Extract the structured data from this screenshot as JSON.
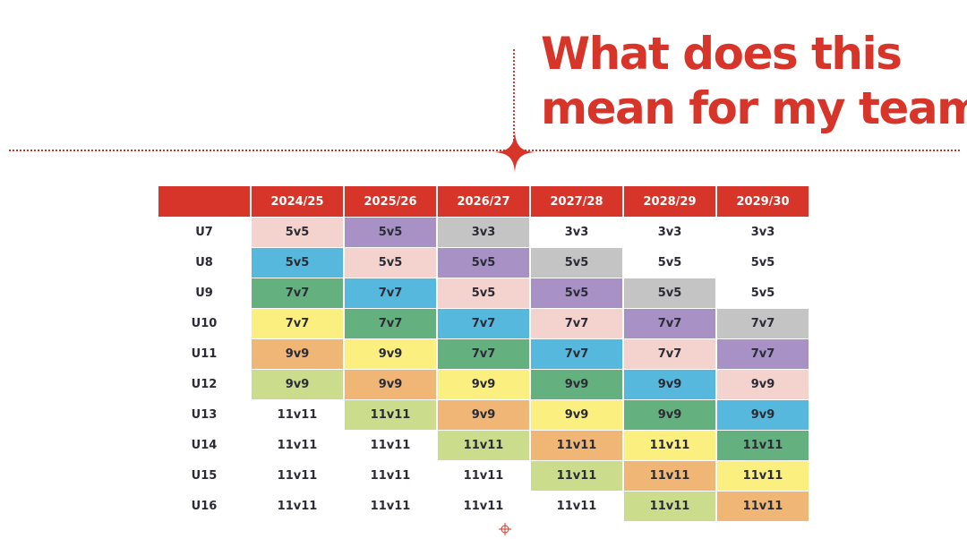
{
  "heading": {
    "line1": "What does this",
    "line2": "mean for my team?"
  },
  "colors": {
    "accent": "#d8352a",
    "pink": "#f4d2cd",
    "purple": "#a891c4",
    "grey": "#c4c4c4",
    "blue": "#55b8dc",
    "green": "#64b07e",
    "yellow": "#fbf07f",
    "orange": "#efb676",
    "lime": "#cbdd8d",
    "white": "#ffffff"
  },
  "table": {
    "seasons": [
      "2024/25",
      "2025/26",
      "2026/27",
      "2027/28",
      "2028/29",
      "2029/30"
    ],
    "rows": [
      {
        "age": "U7",
        "cells": [
          "5v5",
          "5v5",
          "3v3",
          "3v3",
          "3v3",
          "3v3"
        ],
        "colors": [
          "pink",
          "purple",
          "grey",
          "white",
          "white",
          "white"
        ]
      },
      {
        "age": "U8",
        "cells": [
          "5v5",
          "5v5",
          "5v5",
          "5v5",
          "5v5",
          "5v5"
        ],
        "colors": [
          "blue",
          "pink",
          "purple",
          "grey",
          "white",
          "white"
        ]
      },
      {
        "age": "U9",
        "cells": [
          "7v7",
          "7v7",
          "5v5",
          "5v5",
          "5v5",
          "5v5"
        ],
        "colors": [
          "green",
          "blue",
          "pink",
          "purple",
          "grey",
          "white"
        ]
      },
      {
        "age": "U10",
        "cells": [
          "7v7",
          "7v7",
          "7v7",
          "7v7",
          "7v7",
          "7v7"
        ],
        "colors": [
          "yellow",
          "green",
          "blue",
          "pink",
          "purple",
          "grey"
        ]
      },
      {
        "age": "U11",
        "cells": [
          "9v9",
          "9v9",
          "7v7",
          "7v7",
          "7v7",
          "7v7"
        ],
        "colors": [
          "orange",
          "yellow",
          "green",
          "blue",
          "pink",
          "purple"
        ]
      },
      {
        "age": "U12",
        "cells": [
          "9v9",
          "9v9",
          "9v9",
          "9v9",
          "9v9",
          "9v9"
        ],
        "colors": [
          "lime",
          "orange",
          "yellow",
          "green",
          "blue",
          "pink"
        ]
      },
      {
        "age": "U13",
        "cells": [
          "11v11",
          "11v11",
          "9v9",
          "9v9",
          "9v9",
          "9v9"
        ],
        "colors": [
          "white",
          "lime",
          "orange",
          "yellow",
          "green",
          "blue"
        ]
      },
      {
        "age": "U14",
        "cells": [
          "11v11",
          "11v11",
          "11v11",
          "11v11",
          "11v11",
          "11v11"
        ],
        "colors": [
          "white",
          "white",
          "lime",
          "orange",
          "yellow",
          "green"
        ]
      },
      {
        "age": "U15",
        "cells": [
          "11v11",
          "11v11",
          "11v11",
          "11v11",
          "11v11",
          "11v11"
        ],
        "colors": [
          "white",
          "white",
          "white",
          "lime",
          "orange",
          "yellow"
        ]
      },
      {
        "age": "U16",
        "cells": [
          "11v11",
          "11v11",
          "11v11",
          "11v11",
          "11v11",
          "11v11"
        ],
        "colors": [
          "white",
          "white",
          "white",
          "white",
          "lime",
          "orange"
        ]
      }
    ]
  }
}
